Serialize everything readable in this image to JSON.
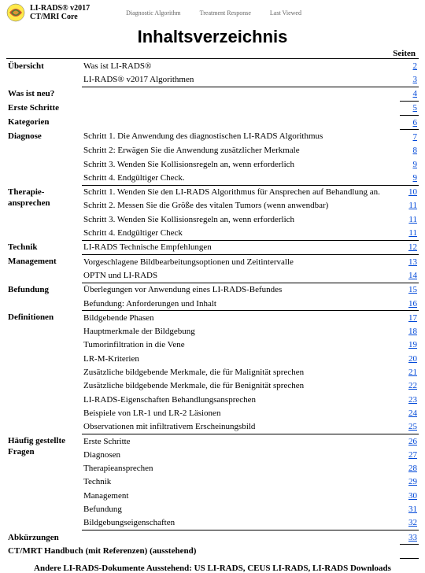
{
  "header": {
    "product_name": "LI-RADS® v2017",
    "product_sub": "CT/MRI Core",
    "nav": [
      "Diagnostic Algorithm",
      "Treatment Response",
      "Last Viewed"
    ]
  },
  "title": "Inhaltsverzeichnis",
  "pages_label": "Seiten",
  "toc": [
    {
      "section": "Übersicht",
      "rows": [
        {
          "label": "Was ist LI-RADS®",
          "page": "2"
        },
        {
          "label": "LI-RADS® v2017 Algorithmen",
          "page": "3"
        }
      ]
    },
    {
      "section": "Was ist neu?",
      "rows": [
        {
          "label": "",
          "page": "4"
        }
      ],
      "full": true
    },
    {
      "section": "Erste Schritte",
      "rows": [
        {
          "label": "",
          "page": "5"
        }
      ],
      "full": true
    },
    {
      "section": "Kategorien",
      "rows": [
        {
          "label": "",
          "page": "6"
        }
      ],
      "full": true
    },
    {
      "section": "Diagnose",
      "rows": [
        {
          "label": "Schritt 1. Die Anwendung des diagnostischen LI-RADS Algorithmus",
          "page": "7"
        },
        {
          "label": "Schritt 2: Erwägen Sie die Anwendung zusätzlicher Merkmale",
          "page": "8"
        },
        {
          "label": "Schritt 3. Wenden Sie Kollisionsregeln an, wenn erforderlich",
          "page": "9"
        },
        {
          "label": "Schritt 4. Endgültiger Check.",
          "page": "9"
        }
      ]
    },
    {
      "section": "Therapie-ansprechen",
      "rows": [
        {
          "label": "Schritt 1. Wenden Sie den LI-RADS Algorithmus für Ansprechen auf Behandlung an.",
          "page": "10"
        },
        {
          "label": "Schritt 2. Messen Sie die Größe des vitalen Tumors (wenn anwendbar)",
          "page": "11"
        },
        {
          "label": "Schritt 3. Wenden Sie Kollisionsregeln an, wenn erforderlich",
          "page": "11"
        },
        {
          "label": "Schritt 4. Endgültiger Check",
          "page": "11"
        }
      ]
    },
    {
      "section": "Technik",
      "rows": [
        {
          "label": "LI-RADS Technische Empfehlungen",
          "page": "12"
        }
      ]
    },
    {
      "section": "Management",
      "rows": [
        {
          "label": "Vorgeschlagene Bildbearbeitungsoptionen und Zeitintervalle",
          "page": "13"
        },
        {
          "label": "OPTN und LI-RADS",
          "page": "14"
        }
      ]
    },
    {
      "section": "Befundung",
      "rows": [
        {
          "label": "Überlegungen vor Anwendung eines LI-RADS-Befundes",
          "page": "15"
        },
        {
          "label": "Befundung: Anforderungen und Inhalt",
          "page": "16"
        }
      ]
    },
    {
      "section": "Definitionen",
      "rows": [
        {
          "label": "Bildgebende Phasen",
          "page": "17"
        },
        {
          "label": "Hauptmerkmale der Bildgebung",
          "page": "18"
        },
        {
          "label": "Tumorinfiltration in die Vene",
          "page": "19"
        },
        {
          "label": "LR-M-Kriterien",
          "page": "20"
        },
        {
          "label": "Zusätzliche bildgebende Merkmale, die für Malignität sprechen",
          "page": "21"
        },
        {
          "label": "Zusätzliche bildgebende Merkmale, die für Benignität sprechen",
          "page": "22"
        },
        {
          "label": "LI-RADS-Eigenschaften Behandlungsansprechen",
          "page": "23"
        },
        {
          "label": "Beispiele von LR-1 und LR-2 Läsionen",
          "page": "24"
        },
        {
          "label": "Observationen mit infiltrativem Erscheinungsbild",
          "page": "25"
        }
      ]
    },
    {
      "section": "Häufig gestellte Fragen",
      "rows": [
        {
          "label": "Erste Schritte",
          "page": "26"
        },
        {
          "label": "Diagnosen",
          "page": "27"
        },
        {
          "label": "Therapieansprechen",
          "page": "28"
        },
        {
          "label": "Technik",
          "page": "29"
        },
        {
          "label": "Management",
          "page": "30"
        },
        {
          "label": "Befundung",
          "page": "31"
        },
        {
          "label": "Bildgebungseigenschaften",
          "page": "32"
        }
      ]
    },
    {
      "section": "Abkürzungen",
      "rows": [
        {
          "label": "",
          "page": "33"
        }
      ],
      "full": true
    },
    {
      "section": "CT/MRT Handbuch (mit Referenzen) (ausstehend)",
      "rows": [
        {
          "label": "",
          "page": ""
        }
      ],
      "full": true
    }
  ],
  "footer": "Andere LI-RADS-Dokumente Ausstehend: US LI-RADS, CEUS LI-RADS, LI-RADS Downloads",
  "link_color": "#0048d8"
}
